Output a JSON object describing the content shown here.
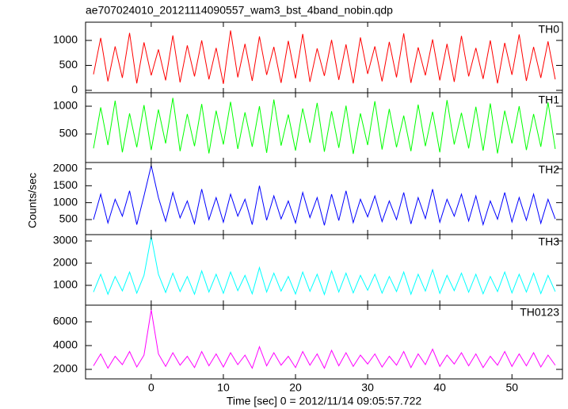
{
  "title": "ae707024010_20121114090557_wam3_bst_4band_nobin.qdp",
  "xlabel": "Time [sec] 0 = 2012/11/14 09:05:57.722",
  "ylabel": "Counts/sec",
  "x": [
    -8,
    -7,
    -6,
    -5,
    -4,
    -3,
    -2,
    -1,
    0,
    1,
    2,
    3,
    4,
    5,
    6,
    7,
    8,
    9,
    10,
    11,
    12,
    13,
    14,
    15,
    16,
    17,
    18,
    19,
    20,
    21,
    22,
    23,
    24,
    25,
    26,
    27,
    28,
    29,
    30,
    31,
    32,
    33,
    34,
    35,
    36,
    37,
    38,
    39,
    40,
    41,
    42,
    43,
    44,
    45,
    46,
    47,
    48,
    49,
    50,
    51,
    52,
    53,
    54,
    55,
    56
  ],
  "xlim": [
    -9.1,
    57
  ],
  "xticks": [
    0,
    10,
    20,
    30,
    40,
    50
  ],
  "chart_data": [
    {
      "type": "line",
      "ylim": [
        -48,
        1365
      ],
      "yticks": [
        0,
        500,
        1000
      ],
      "series": [
        {
          "name": "TH0",
          "color": "#ff0000",
          "values": [
            320,
            1050,
            180,
            880,
            250,
            1150,
            140,
            960,
            300,
            820,
            200,
            1100,
            160,
            900,
            280,
            1000,
            220,
            850,
            130,
            1200,
            260,
            930,
            190,
            1080,
            310,
            870,
            150,
            990,
            240,
            1130,
            170,
            840,
            290,
            1010,
            210,
            920,
            140,
            1060,
            330,
            880,
            180,
            970,
            260,
            1140,
            150,
            860,
            300,
            1020,
            200,
            930,
            170,
            1090,
            280,
            850,
            230,
            1000,
            140,
            950,
            310,
            1120,
            190,
            870,
            250,
            980,
            220
          ]
        }
      ]
    },
    {
      "type": "line",
      "ylim": [
        -14,
        1243
      ],
      "yticks": [
        500,
        1000
      ],
      "series": [
        {
          "name": "TH1",
          "color": "#00ff00",
          "values": [
            240,
            980,
            300,
            1100,
            170,
            870,
            260,
            1020,
            210,
            940,
            330,
            1150,
            190,
            860,
            280,
            1040,
            150,
            920,
            310,
            1080,
            230,
            890,
            270,
            1000,
            160,
            1120,
            290,
            850,
            200,
            960,
            340,
            1060,
            180,
            910,
            250,
            1010,
            140,
            870,
            300,
            1090,
            220,
            950,
            260,
            830,
            190,
            1030,
            280,
            900,
            170,
            1110,
            310,
            880,
            240,
            990,
            200,
            1050,
            150,
            920,
            330,
            1000,
            210,
            860,
            270,
            1070,
            230
          ]
        }
      ]
    },
    {
      "type": "line",
      "ylim": [
        55,
        2187
      ],
      "yticks": [
        500,
        1000,
        1500,
        2000
      ],
      "series": [
        {
          "name": "TH2",
          "color": "#0000ff",
          "values": [
            500,
            1250,
            400,
            1100,
            600,
            1350,
            350,
            1200,
            2100,
            1150,
            450,
            1300,
            550,
            1050,
            380,
            1400,
            500,
            1150,
            420,
            1250,
            600,
            1100,
            350,
            1500,
            480,
            1200,
            520,
            1050,
            400,
            1300,
            560,
            1150,
            330,
            1250,
            470,
            1350,
            410,
            1100,
            580,
            1200,
            440,
            1050,
            500,
            1300,
            370,
            1150,
            530,
            1400,
            420,
            1100,
            600,
            1250,
            460,
            1200,
            350,
            1050,
            510,
            1300,
            430,
            1150,
            480,
            1250,
            390,
            1100,
            520
          ]
        }
      ]
    },
    {
      "type": "line",
      "ylim": [
        107,
        3286
      ],
      "yticks": [
        1000,
        2000,
        3000
      ],
      "series": [
        {
          "name": "TH3",
          "color": "#00ffff",
          "values": [
            700,
            1500,
            600,
            1400,
            750,
            1600,
            650,
            1450,
            3200,
            1500,
            680,
            1550,
            720,
            1400,
            600,
            1650,
            700,
            1500,
            640,
            1600,
            760,
            1450,
            620,
            1800,
            700,
            1550,
            740,
            1400,
            610,
            1600,
            730,
            1500,
            590,
            1650,
            700,
            1550,
            660,
            1450,
            780,
            1500,
            650,
            1400,
            720,
            1600,
            600,
            1500,
            740,
            1700,
            640,
            1450,
            760,
            1550,
            690,
            1500,
            620,
            1400,
            720,
            1600,
            660,
            1500,
            700,
            1550,
            630,
            1450,
            720
          ]
        }
      ]
    },
    {
      "type": "line",
      "ylim": [
        1200,
        7400
      ],
      "yticks": [
        2000,
        4000,
        6000
      ],
      "series": [
        {
          "name": "TH0123",
          "color": "#ff00ff",
          "values": [
            2300,
            3300,
            2100,
            3100,
            2400,
            3500,
            2200,
            3200,
            7000,
            3300,
            2250,
            3400,
            2350,
            3100,
            2150,
            3500,
            2300,
            3300,
            2200,
            3400,
            2400,
            3200,
            2100,
            3900,
            2300,
            3400,
            2350,
            3100,
            2150,
            3500,
            2350,
            3300,
            2100,
            3600,
            2300,
            3400,
            2250,
            3200,
            2450,
            3300,
            2200,
            3100,
            2350,
            3500,
            2150,
            3300,
            2400,
            3700,
            2250,
            3200,
            2450,
            3400,
            2300,
            3300,
            2150,
            3100,
            2350,
            3500,
            2250,
            3300,
            2300,
            3400,
            2200,
            3200,
            2350
          ]
        }
      ]
    }
  ]
}
